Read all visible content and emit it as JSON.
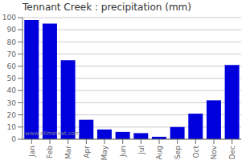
{
  "chart_data": {
    "type": "bar",
    "title": "Tennant Creek : precipitation (mm)",
    "categories": [
      "Jan",
      "Feb",
      "Mar",
      "Apr",
      "May",
      "Jun",
      "Jul",
      "Aug",
      "Sep",
      "Oct",
      "Nov",
      "Dec"
    ],
    "values": [
      98,
      95,
      65,
      16,
      8,
      6,
      5,
      2,
      10,
      21,
      32,
      61
    ],
    "color": "#0000dd",
    "ylim": [
      0,
      100
    ],
    "yticks": [
      0,
      10,
      20,
      30,
      40,
      50,
      60,
      70,
      80,
      90,
      100
    ],
    "grid": true,
    "annotations": [
      "www.allmetsat.com"
    ]
  }
}
